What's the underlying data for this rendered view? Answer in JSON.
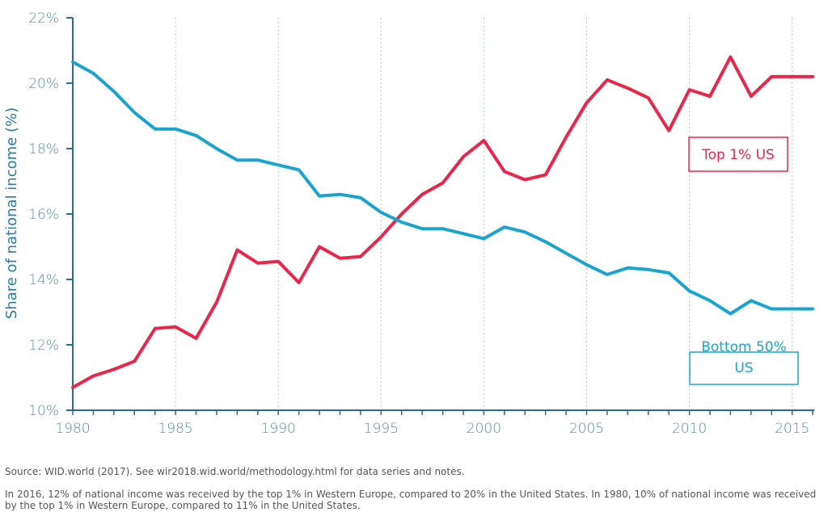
{
  "chart_data": {
    "type": "line",
    "ylabel": "Share of national income (%)",
    "xlabel": "",
    "xlim": [
      1980,
      2016
    ],
    "ylim": [
      10,
      22
    ],
    "x_ticks": [
      "1980",
      "1985",
      "1990",
      "1995",
      "2000",
      "2005",
      "2010",
      "2015"
    ],
    "y_ticks": [
      "10%",
      "12%",
      "14%",
      "16%",
      "18%",
      "20%",
      "22%"
    ],
    "grid": "vertical dotted",
    "x": [
      1980,
      1981,
      1982,
      1983,
      1984,
      1985,
      1986,
      1987,
      1988,
      1989,
      1990,
      1991,
      1992,
      1993,
      1994,
      1995,
      1996,
      1997,
      1998,
      1999,
      2000,
      2001,
      2002,
      2003,
      2004,
      2005,
      2006,
      2007,
      2008,
      2009,
      2010,
      2011,
      2012,
      2013,
      2014,
      2015,
      2016
    ],
    "series": [
      {
        "name": "Top 1% US",
        "color": "#e8264a",
        "values": [
          10.7,
          11.05,
          11.25,
          11.5,
          12.5,
          12.55,
          12.2,
          13.3,
          14.9,
          14.5,
          14.55,
          13.9,
          15.0,
          14.65,
          14.7,
          15.3,
          16.0,
          16.6,
          16.95,
          17.75,
          18.25,
          17.3,
          17.05,
          17.2,
          18.35,
          19.4,
          20.1,
          19.85,
          19.55,
          18.55,
          19.8,
          19.6,
          20.8,
          19.6,
          20.2,
          20.2,
          20.2
        ],
        "label": [
          "Top 1% US"
        ]
      },
      {
        "name": "Bottom 50% US",
        "color": "#1aa3cf",
        "values": [
          20.65,
          20.3,
          19.75,
          19.1,
          18.6,
          18.6,
          18.4,
          18.0,
          17.65,
          17.65,
          17.5,
          17.35,
          16.55,
          16.6,
          16.5,
          16.05,
          15.75,
          15.55,
          15.55,
          15.4,
          15.25,
          15.6,
          15.45,
          15.15,
          14.8,
          14.45,
          14.15,
          14.35,
          14.3,
          14.2,
          13.65,
          13.35,
          12.95,
          13.35,
          13.1,
          13.1,
          13.1
        ],
        "label": [
          "Bottom 50%",
          "US"
        ]
      }
    ]
  },
  "footer": {
    "source": "Source:  WID.world (2017). See wir2018.wid.world/methodology.html for data series and notes.",
    "note": "In 2016, 12% of national income was received by the top 1% in Western Europe, compared to 20% in the United States. In 1980, 10% of national income was received by the top 1% in Western Europe, compared to 11% in the United States."
  }
}
